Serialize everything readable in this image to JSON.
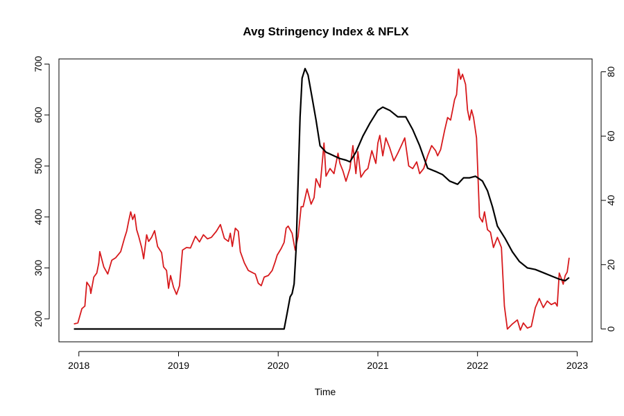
{
  "chart_data": {
    "type": "line",
    "title": "Avg Stringency Index & NFLX",
    "xlabel": "Time",
    "ylabel_left": "",
    "ylabel_right": "",
    "xlim": [
      2017.8,
      2023.15
    ],
    "x_ticks": [
      2018,
      2019,
      2020,
      2021,
      2022,
      2023
    ],
    "ylim_left": [
      155,
      710
    ],
    "y_ticks_left": [
      200,
      300,
      400,
      500,
      600,
      700
    ],
    "ylim_right": [
      -4,
      84
    ],
    "y_ticks_right": [
      0,
      20,
      40,
      60,
      80
    ],
    "colors": {
      "nflx": "#d7191c",
      "stringency": "#000000"
    },
    "series": [
      {
        "axis": "left",
        "color": "#d7191c",
        "points": [
          [
            2017.95,
            190
          ],
          [
            2017.99,
            192
          ],
          [
            2018.03,
            220
          ],
          [
            2018.06,
            225
          ],
          [
            2018.08,
            272
          ],
          [
            2018.11,
            263
          ],
          [
            2018.12,
            250
          ],
          [
            2018.15,
            282
          ],
          [
            2018.18,
            290
          ],
          [
            2018.2,
            310
          ],
          [
            2018.21,
            332
          ],
          [
            2018.25,
            302
          ],
          [
            2018.29,
            288
          ],
          [
            2018.33,
            315
          ],
          [
            2018.37,
            320
          ],
          [
            2018.42,
            332
          ],
          [
            2018.46,
            360
          ],
          [
            2018.48,
            372
          ],
          [
            2018.5,
            392
          ],
          [
            2018.52,
            410
          ],
          [
            2018.54,
            395
          ],
          [
            2018.56,
            405
          ],
          [
            2018.58,
            375
          ],
          [
            2018.6,
            362
          ],
          [
            2018.63,
            340
          ],
          [
            2018.65,
            318
          ],
          [
            2018.68,
            365
          ],
          [
            2018.7,
            352
          ],
          [
            2018.73,
            360
          ],
          [
            2018.76,
            373
          ],
          [
            2018.79,
            342
          ],
          [
            2018.83,
            330
          ],
          [
            2018.85,
            302
          ],
          [
            2018.88,
            295
          ],
          [
            2018.9,
            260
          ],
          [
            2018.92,
            285
          ],
          [
            2018.95,
            262
          ],
          [
            2018.98,
            248
          ],
          [
            2019.01,
            265
          ],
          [
            2019.04,
            335
          ],
          [
            2019.08,
            340
          ],
          [
            2019.12,
            339
          ],
          [
            2019.17,
            362
          ],
          [
            2019.21,
            351
          ],
          [
            2019.25,
            365
          ],
          [
            2019.29,
            357
          ],
          [
            2019.33,
            360
          ],
          [
            2019.38,
            372
          ],
          [
            2019.42,
            385
          ],
          [
            2019.46,
            358
          ],
          [
            2019.5,
            352
          ],
          [
            2019.52,
            368
          ],
          [
            2019.54,
            342
          ],
          [
            2019.57,
            378
          ],
          [
            2019.6,
            372
          ],
          [
            2019.62,
            332
          ],
          [
            2019.66,
            310
          ],
          [
            2019.7,
            295
          ],
          [
            2019.75,
            290
          ],
          [
            2019.77,
            288
          ],
          [
            2019.8,
            270
          ],
          [
            2019.83,
            265
          ],
          [
            2019.86,
            282
          ],
          [
            2019.9,
            285
          ],
          [
            2019.94,
            295
          ],
          [
            2019.97,
            312
          ],
          [
            2019.99,
            325
          ],
          [
            2020.03,
            338
          ],
          [
            2020.06,
            350
          ],
          [
            2020.08,
            378
          ],
          [
            2020.1,
            382
          ],
          [
            2020.14,
            368
          ],
          [
            2020.17,
            335
          ],
          [
            2020.2,
            362
          ],
          [
            2020.23,
            420
          ],
          [
            2020.25,
            420
          ],
          [
            2020.29,
            455
          ],
          [
            2020.33,
            425
          ],
          [
            2020.36,
            438
          ],
          [
            2020.38,
            475
          ],
          [
            2020.42,
            458
          ],
          [
            2020.46,
            545
          ],
          [
            2020.48,
            480
          ],
          [
            2020.52,
            495
          ],
          [
            2020.56,
            485
          ],
          [
            2020.6,
            525
          ],
          [
            2020.62,
            505
          ],
          [
            2020.65,
            490
          ],
          [
            2020.68,
            470
          ],
          [
            2020.72,
            495
          ],
          [
            2020.75,
            540
          ],
          [
            2020.78,
            485
          ],
          [
            2020.8,
            528
          ],
          [
            2020.83,
            478
          ],
          [
            2020.87,
            490
          ],
          [
            2020.9,
            495
          ],
          [
            2020.94,
            530
          ],
          [
            2020.98,
            505
          ],
          [
            2021.0,
            545
          ],
          [
            2021.02,
            560
          ],
          [
            2021.05,
            520
          ],
          [
            2021.08,
            555
          ],
          [
            2021.12,
            535
          ],
          [
            2021.16,
            510
          ],
          [
            2021.2,
            525
          ],
          [
            2021.24,
            542
          ],
          [
            2021.27,
            555
          ],
          [
            2021.31,
            500
          ],
          [
            2021.35,
            495
          ],
          [
            2021.39,
            508
          ],
          [
            2021.42,
            485
          ],
          [
            2021.46,
            495
          ],
          [
            2021.5,
            520
          ],
          [
            2021.54,
            540
          ],
          [
            2021.58,
            530
          ],
          [
            2021.6,
            520
          ],
          [
            2021.63,
            532
          ],
          [
            2021.67,
            570
          ],
          [
            2021.7,
            595
          ],
          [
            2021.73,
            590
          ],
          [
            2021.75,
            610
          ],
          [
            2021.77,
            630
          ],
          [
            2021.79,
            640
          ],
          [
            2021.81,
            690
          ],
          [
            2021.83,
            670
          ],
          [
            2021.85,
            680
          ],
          [
            2021.88,
            660
          ],
          [
            2021.9,
            610
          ],
          [
            2021.92,
            590
          ],
          [
            2021.94,
            610
          ],
          [
            2021.96,
            595
          ],
          [
            2021.99,
            555
          ],
          [
            2022.02,
            400
          ],
          [
            2022.05,
            390
          ],
          [
            2022.07,
            410
          ],
          [
            2022.1,
            375
          ],
          [
            2022.13,
            370
          ],
          [
            2022.16,
            340
          ],
          [
            2022.2,
            360
          ],
          [
            2022.24,
            340
          ],
          [
            2022.27,
            225
          ],
          [
            2022.3,
            180
          ],
          [
            2022.35,
            190
          ],
          [
            2022.4,
            198
          ],
          [
            2022.43,
            178
          ],
          [
            2022.46,
            192
          ],
          [
            2022.5,
            182
          ],
          [
            2022.54,
            185
          ],
          [
            2022.58,
            222
          ],
          [
            2022.62,
            240
          ],
          [
            2022.66,
            222
          ],
          [
            2022.7,
            235
          ],
          [
            2022.74,
            228
          ],
          [
            2022.78,
            232
          ],
          [
            2022.8,
            225
          ],
          [
            2022.82,
            290
          ],
          [
            2022.84,
            280
          ],
          [
            2022.86,
            268
          ],
          [
            2022.88,
            285
          ],
          [
            2022.9,
            292
          ],
          [
            2022.92,
            320
          ]
        ]
      },
      {
        "axis": "right",
        "color": "#000000",
        "points": [
          [
            2017.95,
            0
          ],
          [
            2020.06,
            0
          ],
          [
            2020.09,
            5
          ],
          [
            2020.12,
            10
          ],
          [
            2020.14,
            11
          ],
          [
            2020.16,
            14
          ],
          [
            2020.18,
            25
          ],
          [
            2020.2,
            46
          ],
          [
            2020.22,
            66
          ],
          [
            2020.24,
            78
          ],
          [
            2020.27,
            81
          ],
          [
            2020.3,
            79
          ],
          [
            2020.34,
            72
          ],
          [
            2020.38,
            65
          ],
          [
            2020.42,
            57
          ],
          [
            2020.48,
            55
          ],
          [
            2020.55,
            54
          ],
          [
            2020.62,
            53
          ],
          [
            2020.68,
            52.5
          ],
          [
            2020.72,
            52
          ],
          [
            2020.78,
            55
          ],
          [
            2020.85,
            60
          ],
          [
            2020.92,
            64
          ],
          [
            2021.0,
            68
          ],
          [
            2021.05,
            69
          ],
          [
            2021.12,
            68
          ],
          [
            2021.2,
            66
          ],
          [
            2021.28,
            66
          ],
          [
            2021.35,
            62
          ],
          [
            2021.42,
            57
          ],
          [
            2021.5,
            50
          ],
          [
            2021.58,
            49
          ],
          [
            2021.65,
            48
          ],
          [
            2021.72,
            46
          ],
          [
            2021.8,
            45
          ],
          [
            2021.86,
            47
          ],
          [
            2021.92,
            47
          ],
          [
            2021.98,
            47.5
          ],
          [
            2022.05,
            46
          ],
          [
            2022.1,
            43
          ],
          [
            2022.15,
            38
          ],
          [
            2022.2,
            32
          ],
          [
            2022.28,
            28
          ],
          [
            2022.35,
            24
          ],
          [
            2022.42,
            21
          ],
          [
            2022.5,
            19
          ],
          [
            2022.58,
            18.5
          ],
          [
            2022.66,
            17.5
          ],
          [
            2022.74,
            16.5
          ],
          [
            2022.82,
            15.5
          ],
          [
            2022.88,
            15
          ],
          [
            2022.92,
            16
          ]
        ]
      }
    ],
    "grid": false,
    "legend": "none"
  }
}
